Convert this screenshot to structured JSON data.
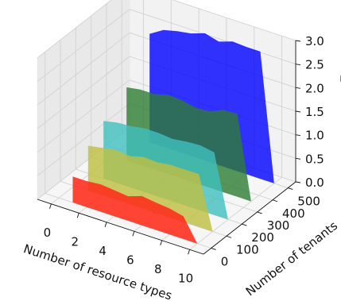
{
  "chart_data": {
    "type": "area",
    "projection": "3d",
    "xlabel": "Number of resource types",
    "ylabel": "Number of tenants",
    "zlabel": "α_CV",
    "xlim": [
      -1,
      11
    ],
    "ylim": [
      -50,
      550
    ],
    "zlim": [
      0,
      3
    ],
    "xticks": [
      "0",
      "2",
      "4",
      "6",
      "8",
      "10"
    ],
    "yticks": [
      "0",
      "100",
      "200",
      "300",
      "400",
      "500"
    ],
    "zticks": [
      "0.0",
      "0.5",
      "1.0",
      "1.5",
      "2.0",
      "2.5",
      "3.0"
    ],
    "grid": true,
    "x": [
      1,
      2,
      3,
      4,
      5,
      6,
      7,
      8,
      9,
      10
    ],
    "series": [
      {
        "tenants": 500,
        "color": "#0000ff",
        "opacity": 0.8,
        "values": [
          2.3,
          2.48,
          2.55,
          2.6,
          2.7,
          2.62,
          2.72,
          2.7,
          2.7,
          0
        ]
      },
      {
        "tenants": 350,
        "color": "#2e7d32",
        "opacity": 0.8,
        "values": [
          1.55,
          1.6,
          1.6,
          1.68,
          1.66,
          1.6,
          1.62,
          1.75,
          1.76,
          0
        ]
      },
      {
        "tenants": 200,
        "color": "#40bfbf",
        "opacity": 0.8,
        "values": [
          1.22,
          1.28,
          1.3,
          1.35,
          1.35,
          1.32,
          1.36,
          1.38,
          1.33,
          0
        ]
      },
      {
        "tenants": 100,
        "color": "#bfbf40",
        "opacity": 0.8,
        "values": [
          0.95,
          1.0,
          1.05,
          1.02,
          1.1,
          1.08,
          1.12,
          1.12,
          1.12,
          0
        ]
      },
      {
        "tenants": 0,
        "color": "#ff2b1a",
        "opacity": 0.88,
        "values": [
          0.55,
          0.55,
          0.58,
          0.55,
          0.52,
          0.62,
          0.58,
          0.55,
          0.48,
          0
        ]
      }
    ]
  }
}
